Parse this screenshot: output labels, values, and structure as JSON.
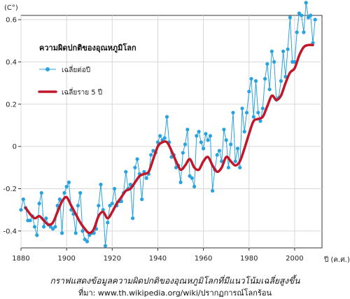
{
  "chart_data": {
    "type": "line",
    "ylabel": "(C°)",
    "xlabel": "ปี (ค.ศ.)",
    "xlim": [
      1880,
      2012
    ],
    "ylim": [
      -0.48,
      0.62
    ],
    "x_ticks": [
      1880,
      1900,
      1920,
      1940,
      1960,
      1980,
      2000
    ],
    "y_ticks": [
      -0.4,
      -0.2,
      0,
      0.2,
      0.4,
      0.6
    ],
    "y_tick_labels": [
      "-0.4",
      "-0.2",
      "0",
      "0.2",
      "0.4",
      "0.6"
    ],
    "grid": true,
    "legend": {
      "title": "ความผิดปกติของอุณหภูมิโลก",
      "position": "top-left",
      "annual_label": "เฉลี่ยต่อปี",
      "smooth_label": "เฉลี่ยราย 5 ปี"
    },
    "colors": {
      "annual": "#29a3de",
      "smooth": "#c0182a",
      "grid": "#d7d7d7"
    },
    "series": [
      {
        "name": "เฉลี่ยต่อปี",
        "x": [
          1880,
          1881,
          1882,
          1883,
          1884,
          1885,
          1886,
          1887,
          1888,
          1889,
          1890,
          1891,
          1892,
          1893,
          1894,
          1895,
          1896,
          1897,
          1898,
          1899,
          1900,
          1901,
          1902,
          1903,
          1904,
          1905,
          1906,
          1907,
          1908,
          1909,
          1910,
          1911,
          1912,
          1913,
          1914,
          1915,
          1916,
          1917,
          1918,
          1919,
          1920,
          1921,
          1922,
          1923,
          1924,
          1925,
          1926,
          1927,
          1928,
          1929,
          1930,
          1931,
          1932,
          1933,
          1934,
          1935,
          1936,
          1937,
          1938,
          1939,
          1940,
          1941,
          1942,
          1943,
          1944,
          1945,
          1946,
          1947,
          1948,
          1949,
          1950,
          1951,
          1952,
          1953,
          1954,
          1955,
          1956,
          1957,
          1958,
          1959,
          1960,
          1961,
          1962,
          1963,
          1964,
          1965,
          1966,
          1967,
          1968,
          1969,
          1970,
          1971,
          1972,
          1973,
          1974,
          1975,
          1976,
          1977,
          1978,
          1979,
          1980,
          1981,
          1982,
          1983,
          1984,
          1985,
          1986,
          1987,
          1988,
          1989,
          1990,
          1991,
          1992,
          1993,
          1994,
          1995,
          1996,
          1997,
          1998,
          1999,
          2000,
          2001,
          2002,
          2003,
          2004,
          2005,
          2006,
          2007,
          2008,
          2009
        ],
        "values": [
          -0.3,
          -0.25,
          -0.29,
          -0.35,
          -0.35,
          -0.33,
          -0.38,
          -0.42,
          -0.27,
          -0.22,
          -0.38,
          -0.34,
          -0.37,
          -0.38,
          -0.39,
          -0.38,
          -0.28,
          -0.25,
          -0.41,
          -0.22,
          -0.19,
          -0.17,
          -0.3,
          -0.32,
          -0.41,
          -0.28,
          -0.22,
          -0.4,
          -0.44,
          -0.45,
          -0.42,
          -0.41,
          -0.41,
          -0.39,
          -0.28,
          -0.18,
          -0.3,
          -0.47,
          -0.36,
          -0.28,
          -0.27,
          -0.2,
          -0.28,
          -0.26,
          -0.26,
          -0.22,
          -0.12,
          -0.2,
          -0.18,
          -0.34,
          -0.1,
          -0.06,
          -0.13,
          -0.25,
          -0.12,
          -0.15,
          -0.13,
          -0.04,
          -0.02,
          -0.03,
          0.02,
          0.05,
          0.03,
          0.04,
          0.14,
          0.02,
          -0.05,
          -0.04,
          -0.1,
          -0.09,
          -0.17,
          -0.03,
          0.01,
          0.08,
          -0.14,
          -0.15,
          -0.19,
          0.05,
          0.07,
          0.02,
          -0.01,
          0.06,
          0.03,
          0.05,
          -0.21,
          -0.11,
          -0.04,
          -0.02,
          -0.07,
          0.08,
          0.03,
          -0.1,
          0.01,
          0.16,
          -0.07,
          -0.01,
          -0.1,
          0.18,
          0.07,
          0.16,
          0.26,
          0.32,
          0.14,
          0.31,
          0.16,
          0.12,
          0.18,
          0.32,
          0.39,
          0.27,
          0.45,
          0.4,
          0.22,
          0.23,
          0.31,
          0.45,
          0.33,
          0.46,
          0.61,
          0.4,
          0.4,
          0.54,
          0.63,
          0.62,
          0.54,
          0.68,
          0.61,
          0.62,
          0.49,
          0.6
        ],
        "note": "values read off the plotted points"
      },
      {
        "name": "เฉลี่ยราย 5 ปี",
        "x": [
          1882,
          1884,
          1886,
          1888,
          1890,
          1892,
          1894,
          1896,
          1898,
          1900,
          1902,
          1904,
          1906,
          1908,
          1910,
          1912,
          1914,
          1916,
          1918,
          1920,
          1922,
          1924,
          1926,
          1928,
          1930,
          1932,
          1934,
          1936,
          1938,
          1940,
          1942,
          1944,
          1946,
          1948,
          1950,
          1952,
          1954,
          1956,
          1958,
          1960,
          1962,
          1964,
          1966,
          1968,
          1970,
          1972,
          1974,
          1976,
          1978,
          1980,
          1982,
          1984,
          1986,
          1988,
          1990,
          1992,
          1994,
          1996,
          1998,
          2000,
          2002,
          2004,
          2006,
          2008
        ],
        "values": [
          -0.29,
          -0.32,
          -0.34,
          -0.33,
          -0.35,
          -0.37,
          -0.36,
          -0.31,
          -0.26,
          -0.24,
          -0.28,
          -0.32,
          -0.36,
          -0.39,
          -0.41,
          -0.39,
          -0.33,
          -0.31,
          -0.34,
          -0.31,
          -0.27,
          -0.24,
          -0.21,
          -0.2,
          -0.17,
          -0.14,
          -0.13,
          -0.12,
          -0.06,
          0.0,
          0.02,
          0.02,
          -0.02,
          -0.07,
          -0.11,
          -0.09,
          -0.06,
          -0.1,
          -0.11,
          -0.07,
          -0.05,
          -0.09,
          -0.12,
          -0.1,
          -0.05,
          -0.07,
          -0.09,
          -0.07,
          -0.01,
          0.06,
          0.12,
          0.13,
          0.14,
          0.19,
          0.24,
          0.22,
          0.24,
          0.3,
          0.35,
          0.37,
          0.43,
          0.47,
          0.48,
          0.48
        ]
      }
    ]
  },
  "caption": {
    "main": "กราฟแสดงข้อมูลความผิดปกติของอุณหภูมิโลกที่มีแนวโน้มเฉลี่ยสูงขึ้น",
    "source": "ที่มา: www.th.wikipedia.org/wiki/ปรากฏการณ์โลกร้อน"
  }
}
